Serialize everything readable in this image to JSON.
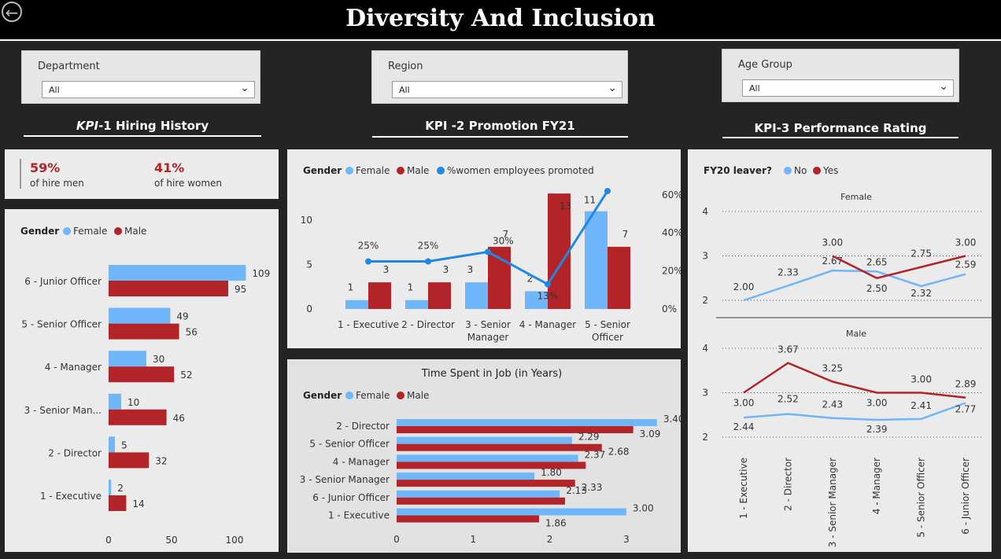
{
  "header": {
    "title": "Diversity And Inclusion"
  },
  "colors": {
    "female": "#6fb6fb",
    "male": "#b22428",
    "promoted": "#1e88e5"
  },
  "slicers": [
    {
      "label": "Department",
      "value": "All"
    },
    {
      "label": "Region",
      "value": "All"
    },
    {
      "label": "Age Group",
      "value": "All"
    }
  ],
  "kpi_titles": {
    "kpi1_prefix": "KPI",
    "kpi1_suffix": "-1 Hiring History",
    "kpi2": "KPI -2 Promotion FY21",
    "kpi3": "KPI-3 Performance Rating"
  },
  "hire_card": {
    "men_pct": "59%",
    "men_label": "of hire men",
    "women_pct": "41%",
    "women_label": "of hire women"
  },
  "chart_data": [
    {
      "id": "hiring",
      "type": "bar",
      "orientation": "horizontal",
      "legend_title": "Gender",
      "categories": [
        "6 - Junior Officer",
        "5 - Senior Officer",
        "4 - Manager",
        "3 - Senior Man...",
        "2 - Director",
        "1 - Executive"
      ],
      "series": [
        {
          "name": "Female",
          "values": [
            109,
            49,
            30,
            10,
            5,
            2
          ]
        },
        {
          "name": "Male",
          "values": [
            95,
            56,
            52,
            46,
            32,
            14
          ]
        }
      ],
      "xlim": [
        0,
        109
      ],
      "xticks": [
        "0",
        "50",
        "100"
      ]
    },
    {
      "id": "promotion",
      "type": "bar",
      "legend_title": "Gender",
      "categories": [
        "1 - Executive",
        "2 - Director",
        "3 - Senior Manager",
        "4 - Manager",
        "5 - Senior Officer"
      ],
      "series": [
        {
          "name": "Female",
          "values": [
            1,
            1,
            3,
            2,
            11
          ]
        },
        {
          "name": "Male",
          "values": [
            3,
            3,
            7,
            13,
            7
          ]
        }
      ],
      "line_series": {
        "name": "%women employees promoted",
        "values": [
          25,
          25,
          30,
          13,
          62
        ],
        "labels": [
          "25%",
          "25%",
          "30%",
          "13%",
          ""
        ]
      },
      "ylim": [
        0,
        13.5
      ],
      "yticks": [
        "0",
        "5",
        "10"
      ],
      "y2ticks": [
        "0%",
        "20%",
        "40%",
        "60%"
      ]
    },
    {
      "id": "timejob",
      "type": "bar",
      "orientation": "horizontal",
      "title": "Time Spent in Job (in Years)",
      "legend_title": "Gender",
      "categories": [
        "2 - Director",
        "5 - Senior Officer",
        "4 - Manager",
        "3 - Senior Manager",
        "6 - Junior Officer",
        "1 - Executive"
      ],
      "series": [
        {
          "name": "Female",
          "values": [
            3.4,
            2.29,
            2.37,
            1.8,
            2.13,
            3.0
          ],
          "labels": [
            "3.40",
            "2.29",
            "2.37",
            "1.80",
            "2.13",
            "3.00"
          ]
        },
        {
          "name": "Male",
          "values": [
            3.09,
            2.68,
            2.47,
            2.33,
            2.2,
            1.86
          ],
          "labels": [
            "3.09",
            "2.68",
            "",
            "2.33",
            "",
            "1.86"
          ]
        }
      ],
      "xlim": [
        0,
        3.4
      ],
      "xticks": [
        "0",
        "1",
        "2",
        "3"
      ]
    },
    {
      "id": "performance",
      "type": "line",
      "legend_title": "FY20 leaver?",
      "categories": [
        "1 - Executive",
        "2 - Director",
        "3 - Senior Manager",
        "4 - Manager",
        "5 - Senior Officer",
        "6 - Junior Officer"
      ],
      "panels": [
        {
          "name": "Female",
          "yticks": [
            "2",
            "3",
            "4"
          ],
          "ylim": [
            2,
            4
          ],
          "series": [
            {
              "name": "No",
              "values": [
                2.0,
                2.33,
                2.67,
                2.65,
                2.32,
                2.59
              ],
              "labels": [
                "2.00",
                "2.33",
                "2.67",
                "2.65",
                "2.32",
                "2.59"
              ]
            },
            {
              "name": "Yes",
              "values": [
                null,
                null,
                3.0,
                2.5,
                2.75,
                3.0
              ],
              "labels": [
                "",
                "",
                "3.00",
                "2.50",
                "2.75",
                "3.00"
              ]
            }
          ]
        },
        {
          "name": "Male",
          "yticks": [
            "2",
            "3",
            "4"
          ],
          "ylim": [
            2,
            4
          ],
          "series": [
            {
              "name": "No",
              "values": [
                2.44,
                2.52,
                2.43,
                2.39,
                2.41,
                2.77
              ],
              "labels": [
                "2.44",
                "2.52",
                "2.43",
                "2.39",
                "2.41",
                "2.77"
              ]
            },
            {
              "name": "Yes",
              "values": [
                3.0,
                3.67,
                3.25,
                3.0,
                3.0,
                2.89
              ],
              "labels": [
                "3.00",
                "3.67",
                "3.25",
                "3.00",
                "3.00",
                "2.89"
              ]
            }
          ]
        }
      ]
    }
  ]
}
